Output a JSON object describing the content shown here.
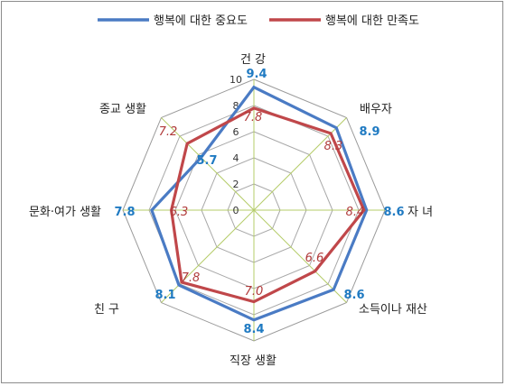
{
  "chart_data": {
    "type": "radar",
    "axes": [
      "건 강",
      "배우자",
      "자 녀",
      "소득이나 재산",
      "직장 생활",
      "친 구",
      "문화·여가 생활",
      "종교 생활"
    ],
    "rlim": [
      0,
      10
    ],
    "ticks": [
      "0",
      "2",
      "4",
      "6",
      "8",
      "10"
    ],
    "legend_position": "top",
    "series": [
      {
        "name": "행복에 대한 중요도",
        "color": "#4a7bc4",
        "label_color": "#1f7ac2",
        "values": [
          9.4,
          8.9,
          8.6,
          8.6,
          8.4,
          8.1,
          7.8,
          5.7
        ],
        "value_labels": [
          "9.4",
          "8.9",
          "8.6",
          "8.6",
          "8.4",
          "8.1",
          "7.8",
          "5.7"
        ]
      },
      {
        "name": "행복에 대한 만족도",
        "color": "#c0474a",
        "label_color": "#b03a3a",
        "values": [
          7.8,
          8.3,
          8.4,
          6.6,
          7.0,
          7.8,
          6.3,
          7.2
        ],
        "value_labels": [
          "7.8",
          "8.3",
          "8.4",
          "6.6",
          "7.0",
          "7.8",
          "6.3",
          "7.2"
        ]
      }
    ]
  }
}
